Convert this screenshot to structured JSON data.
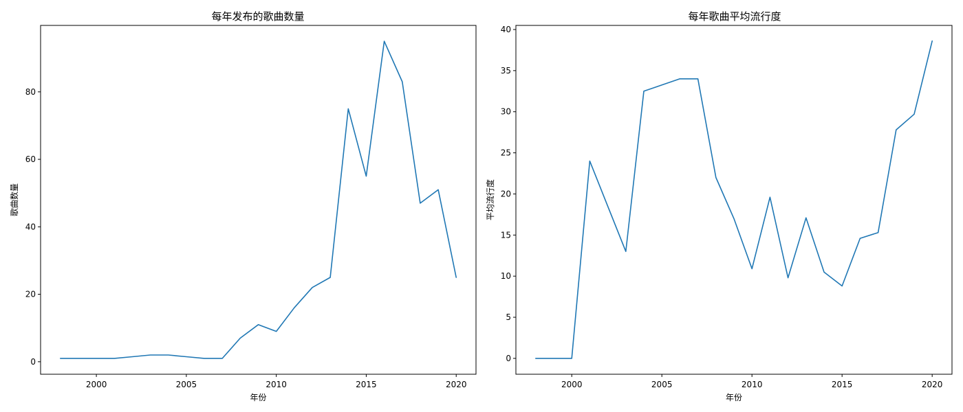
{
  "chart_data": [
    {
      "type": "line",
      "title": "每年发布的歌曲数量",
      "xlabel": "年份",
      "ylabel": "歌曲数量",
      "xlim": [
        1996.9,
        2021.1
      ],
      "ylim": [
        -3.7,
        99.7
      ],
      "xticks": [
        2000,
        2005,
        2010,
        2015,
        2020
      ],
      "yticks": [
        0,
        20,
        40,
        60,
        80
      ],
      "grid": false,
      "color": "#1f77b4",
      "series": [
        {
          "x": [
            1998,
            1999,
            2000,
            2001,
            2002,
            2003,
            2004,
            2005,
            2006,
            2007,
            2008,
            2009,
            2010,
            2011,
            2012,
            2013,
            2014,
            2015,
            2016,
            2017,
            2018,
            2019,
            2020
          ],
          "values": [
            1,
            1,
            1,
            1,
            1.5,
            2,
            2,
            1.5,
            1,
            1,
            7,
            11,
            9,
            16,
            22,
            25,
            75,
            55,
            95,
            83,
            47,
            51,
            25
          ]
        }
      ]
    },
    {
      "type": "line",
      "title": "每年歌曲平均流行度",
      "xlabel": "年份",
      "ylabel": "平均流行度",
      "xlim": [
        1996.9,
        2021.1
      ],
      "ylim": [
        -1.93,
        40.5
      ],
      "xticks": [
        2000,
        2005,
        2010,
        2015,
        2020
      ],
      "yticks": [
        0,
        5,
        10,
        15,
        20,
        25,
        30,
        35,
        40
      ],
      "grid": false,
      "color": "#1f77b4",
      "series": [
        {
          "x": [
            1998,
            1999,
            2000,
            2001,
            2002,
            2003,
            2004,
            2005,
            2006,
            2007,
            2008,
            2009,
            2010,
            2011,
            2012,
            2013,
            2014,
            2015,
            2016,
            2017,
            2018,
            2019,
            2020
          ],
          "values": [
            0,
            0,
            0,
            24,
            18.5,
            13,
            32.5,
            33.25,
            34,
            34,
            22,
            17,
            10.9,
            19.6,
            9.8,
            17.1,
            10.5,
            8.8,
            14.6,
            15.3,
            27.8,
            29.7,
            38.6
          ]
        }
      ]
    }
  ]
}
